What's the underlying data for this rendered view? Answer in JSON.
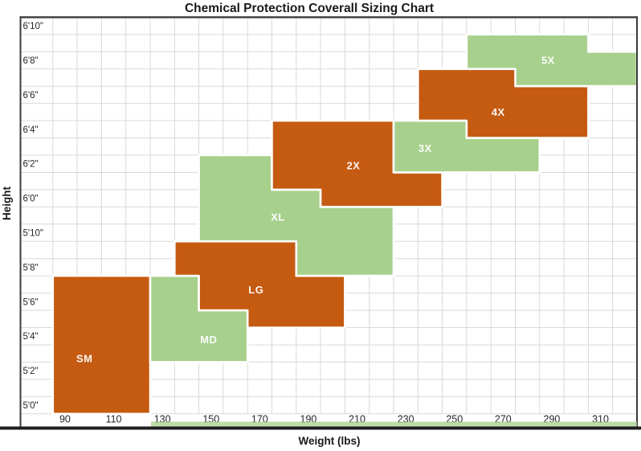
{
  "title": "Chemical Protection Coverall Sizing Chart",
  "chart_data": {
    "type": "area",
    "title": "Chemical Protection Coverall Sizing Chart",
    "xlabel": "Weight (lbs)",
    "ylabel": "Height",
    "xlim_lbs": [
      75,
      325
    ],
    "ylim_inches": [
      59.5,
      82.5
    ],
    "grid": true,
    "x_gridline_interval_lbs": 10,
    "y_gridline_interval_inches": 1,
    "x_tick_labels": [
      {
        "label": "90",
        "lbs": 90
      },
      {
        "label": "110",
        "lbs": 110
      },
      {
        "label": "130",
        "lbs": 130
      },
      {
        "label": "150",
        "lbs": 150
      },
      {
        "label": "170",
        "lbs": 170
      },
      {
        "label": "190",
        "lbs": 190
      },
      {
        "label": "210",
        "lbs": 210
      },
      {
        "label": "230",
        "lbs": 230
      },
      {
        "label": "250",
        "lbs": 250
      },
      {
        "label": "270",
        "lbs": 270
      },
      {
        "label": "290",
        "lbs": 290
      },
      {
        "label": "310",
        "lbs": 310
      }
    ],
    "y_tick_labels": [
      {
        "label": "6'10\"",
        "inches": 82
      },
      {
        "label": "6'8\"",
        "inches": 80
      },
      {
        "label": "6'6\"",
        "inches": 78
      },
      {
        "label": "6'4\"",
        "inches": 76
      },
      {
        "label": "6'2\"",
        "inches": 74
      },
      {
        "label": "6'0\"",
        "inches": 72
      },
      {
        "label": "5'10\"",
        "inches": 70
      },
      {
        "label": "5'8\"",
        "inches": 68
      },
      {
        "label": "5'6\"",
        "inches": 66
      },
      {
        "label": "5'4\"",
        "inches": 64
      },
      {
        "label": "5'2\"",
        "inches": 62
      },
      {
        "label": "5'0\"",
        "inches": 60
      }
    ],
    "regions": [
      {
        "size": "SM",
        "fill": "orange",
        "polygon": [
          [
            85,
            67.5
          ],
          [
            125,
            67.5
          ],
          [
            125,
            59.5
          ],
          [
            85,
            59.5
          ]
        ],
        "label_at": [
          98,
          62.7
        ]
      },
      {
        "size": "MD",
        "fill": "green",
        "polygon": [
          [
            125,
            67.5
          ],
          [
            145,
            67.5
          ],
          [
            145,
            65.5
          ],
          [
            165,
            65.5
          ],
          [
            165,
            62.5
          ],
          [
            125,
            62.5
          ]
        ],
        "label_at": [
          149,
          63.8
        ]
      },
      {
        "size": "LG",
        "fill": "orange",
        "polygon": [
          [
            135,
            69.5
          ],
          [
            185,
            69.5
          ],
          [
            185,
            67.5
          ],
          [
            205,
            67.5
          ],
          [
            205,
            64.5
          ],
          [
            165,
            64.5
          ],
          [
            165,
            65.5
          ],
          [
            145,
            65.5
          ],
          [
            145,
            67.5
          ],
          [
            135,
            67.5
          ]
        ],
        "label_at": [
          168.5,
          66.7
        ]
      },
      {
        "size": "XL",
        "fill": "green",
        "polygon": [
          [
            145,
            74.5
          ],
          [
            175,
            74.5
          ],
          [
            175,
            72.5
          ],
          [
            195,
            72.5
          ],
          [
            195,
            71.5
          ],
          [
            225,
            71.5
          ],
          [
            225,
            67.5
          ],
          [
            185,
            67.5
          ],
          [
            185,
            69.5
          ],
          [
            145,
            69.5
          ]
        ],
        "label_at": [
          177.5,
          70.9
        ]
      },
      {
        "size": "2X",
        "fill": "orange",
        "polygon": [
          [
            175,
            76.5
          ],
          [
            225,
            76.5
          ],
          [
            225,
            73.5
          ],
          [
            245,
            73.5
          ],
          [
            245,
            71.5
          ],
          [
            195,
            71.5
          ],
          [
            195,
            72.5
          ],
          [
            175,
            72.5
          ]
        ],
        "label_at": [
          208.5,
          73.9
        ]
      },
      {
        "size": "3X",
        "fill": "green",
        "polygon": [
          [
            225,
            76.5
          ],
          [
            255,
            76.5
          ],
          [
            255,
            75.5
          ],
          [
            285,
            75.5
          ],
          [
            285,
            73.5
          ],
          [
            225,
            73.5
          ]
        ],
        "label_at": [
          238,
          74.9
        ]
      },
      {
        "size": "4X",
        "fill": "orange",
        "polygon": [
          [
            235,
            79.5
          ],
          [
            275,
            79.5
          ],
          [
            275,
            78.5
          ],
          [
            305,
            78.5
          ],
          [
            305,
            75.5
          ],
          [
            255,
            75.5
          ],
          [
            255,
            76.5
          ],
          [
            235,
            76.5
          ]
        ],
        "label_at": [
          268,
          77.0
        ]
      },
      {
        "size": "5X",
        "fill": "green",
        "polygon": [
          [
            255,
            81.5
          ],
          [
            305,
            81.5
          ],
          [
            305,
            80.5
          ],
          [
            325,
            80.5
          ],
          [
            325,
            78.5
          ],
          [
            255,
            78.5
          ]
        ],
        "label_at": [
          288.5,
          80.0
        ]
      }
    ]
  },
  "colors": {
    "orange": "#C55A11",
    "green": "#A8D08D",
    "gridline": "#D9D9D9",
    "plot_border": "#3B3B3B",
    "bottom_bar": "#1F1F1F",
    "bottom_strip": "#A8D08D",
    "tick_text": "#262626",
    "title_text": "#1A1A1A",
    "region_label_text": "#FFFFFF",
    "region_outline": "#FFFFFF"
  }
}
